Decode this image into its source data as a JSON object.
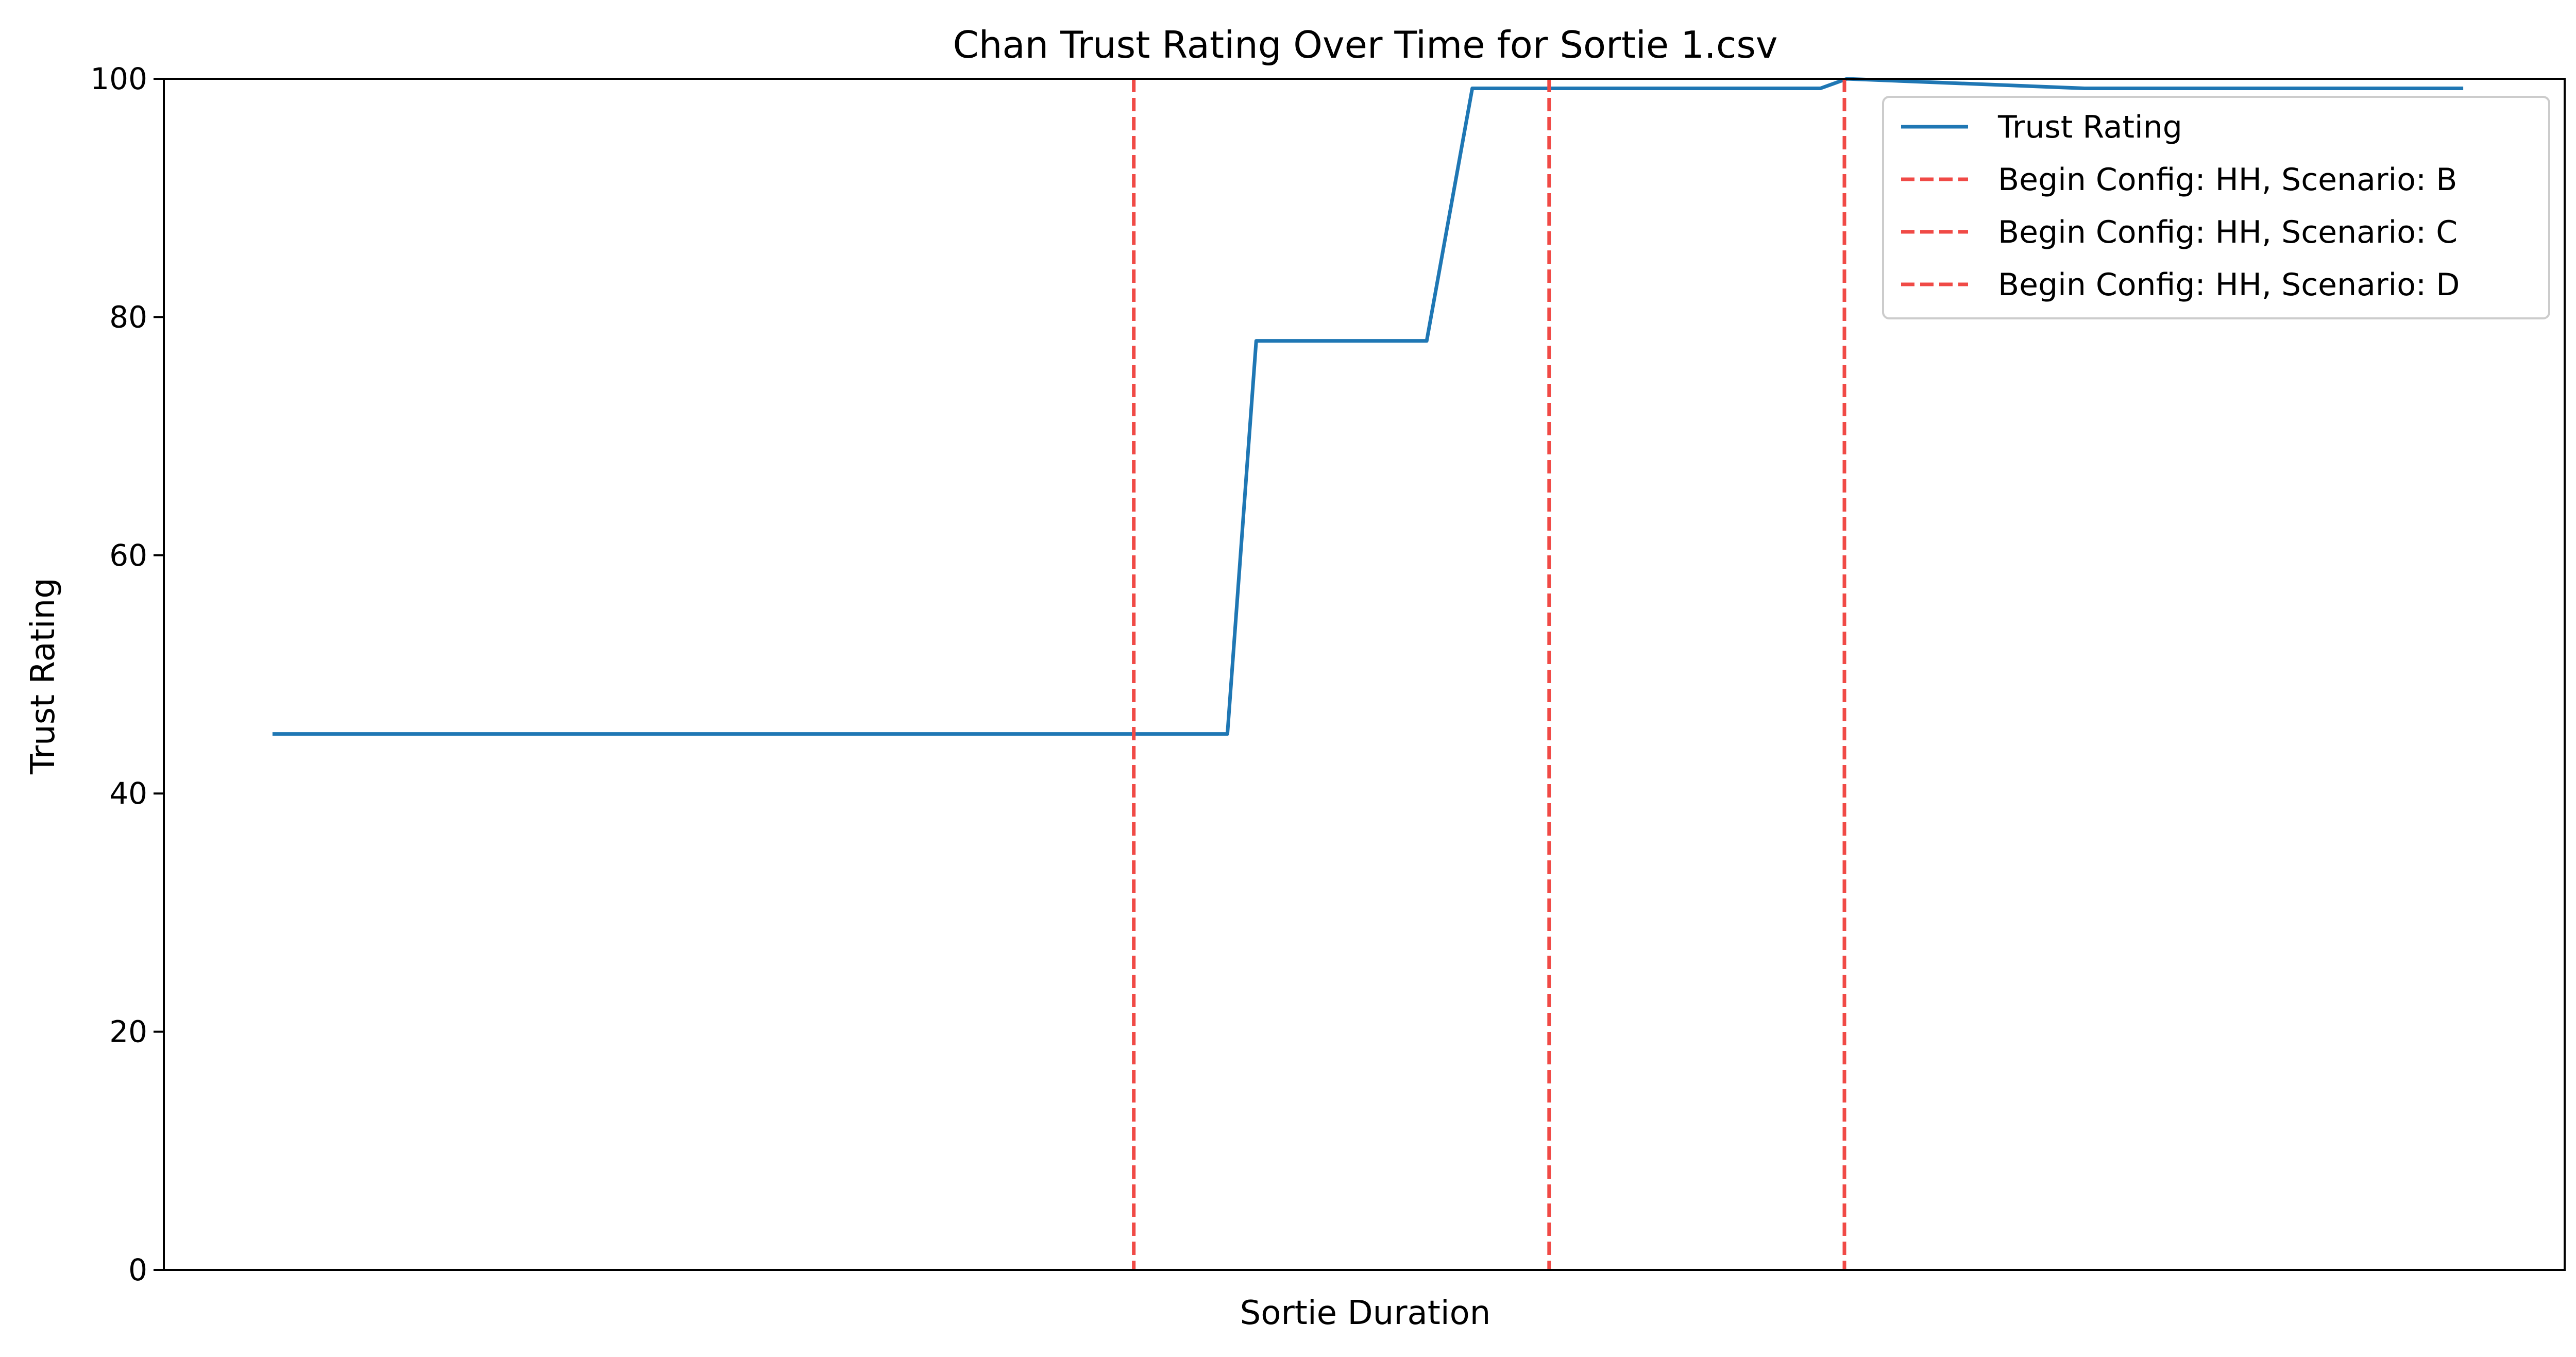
{
  "chart_data": {
    "type": "line",
    "title": "Chan Trust Rating Over Time for Sortie 1.csv",
    "xlabel": "Sortie Duration",
    "ylabel": "Trust Rating",
    "xlim": [
      0,
      100
    ],
    "ylim": [
      0,
      100
    ],
    "yticks": [
      0,
      20,
      40,
      60,
      80,
      100
    ],
    "yticklabels": [
      "0",
      "20",
      "40",
      "60",
      "80",
      "100"
    ],
    "xticks_visible": false,
    "grid": false,
    "legend_position": "top-right",
    "series": [
      {
        "name": "Trust Rating",
        "color": "#1f77b4",
        "style": "solid",
        "x": [
          4.6,
          44.3,
          45.5,
          52.6,
          54.5,
          63.0,
          63.5,
          64.0,
          64.5,
          69.0,
          70.1,
          80.0,
          95.7
        ],
        "y": [
          45,
          45,
          78,
          78,
          99.2,
          99.2,
          99.2,
          99.2,
          99.2,
          99.2,
          100,
          99.2,
          99.2
        ]
      }
    ],
    "vlines": [
      {
        "name": "Begin Config: HH, Scenario: B",
        "x": 40.4,
        "color": "#f04a46",
        "style": "dashed"
      },
      {
        "name": "Begin Config: HH, Scenario: C",
        "x": 57.7,
        "color": "#f04a46",
        "style": "dashed"
      },
      {
        "name": "Begin Config: HH, Scenario: D",
        "x": 70.0,
        "color": "#f04a46",
        "style": "dashed"
      }
    ]
  }
}
